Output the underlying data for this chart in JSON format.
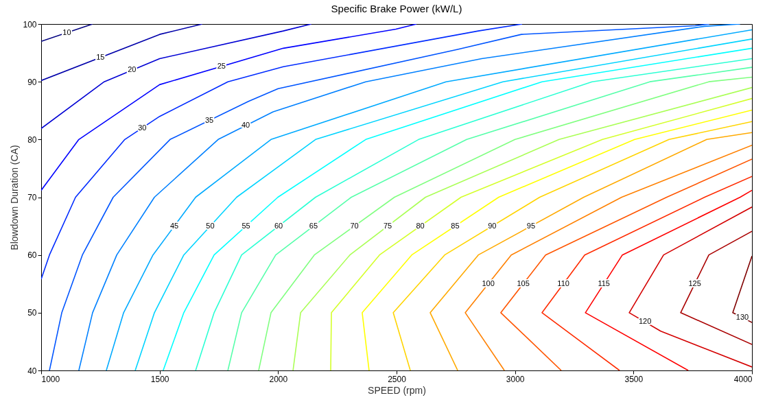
{
  "chart_data": {
    "type": "line",
    "title": "Specific Brake Power (kW/L)",
    "xlabel": "SPEED (rpm)",
    "ylabel": "Blowdown Duration (CA)",
    "xlim": [
      1000,
      4000
    ],
    "ylim": [
      40,
      100
    ],
    "xticks": [
      1000,
      1500,
      2000,
      2500,
      3000,
      3500,
      4000
    ],
    "yticks": [
      40,
      50,
      60,
      70,
      80,
      90,
      100
    ],
    "grid": false,
    "series": [
      {
        "name": "10",
        "color": "#000080",
        "x": [
          1000,
          1217
        ],
        "values": [
          97,
          100
        ]
      },
      {
        "name": "15",
        "color": "#0000aa",
        "x": [
          1000,
          1500,
          1680
        ],
        "values": [
          90.2,
          98.2,
          100
        ]
      },
      {
        "name": "20",
        "color": "#0000d4",
        "x": [
          1000,
          1266,
          1500,
          2022,
          2140
        ],
        "values": [
          81.9,
          90,
          94,
          98.8,
          100
        ]
      },
      {
        "name": "25",
        "color": "#0000ff",
        "x": [
          1000,
          1159,
          1500,
          2022,
          2497,
          2584
        ],
        "values": [
          71.2,
          80,
          89.5,
          95.8,
          99.1,
          100
        ]
      },
      {
        "name": "30",
        "color": "#002bff",
        "x": [
          1000,
          1035,
          1145,
          1353,
          1500,
          1788,
          2022,
          2845,
          3030
        ],
        "values": [
          55.8,
          60,
          70,
          80,
          84,
          90,
          92.6,
          98.8,
          100
        ]
      },
      {
        "name": "35",
        "color": "#0055ff",
        "x": [
          1035,
          1087,
          1174,
          1304,
          1544,
          1875,
          2000,
          2758,
          3027,
          3760,
          3820
        ],
        "values": [
          40,
          50,
          60,
          70,
          80,
          86.6,
          88.8,
          95.6,
          98.2,
          99.7,
          100
        ]
      },
      {
        "name": "40",
        "color": "#0080ff",
        "x": [
          1159,
          1217,
          1319,
          1478,
          1747,
          1979,
          2370,
          2859,
          3800,
          3950
        ],
        "values": [
          40,
          50,
          60,
          70,
          80,
          84.8,
          90,
          94,
          99.6,
          100
        ]
      },
      {
        "name": "45",
        "color": "#00aaff",
        "x": [
          1275,
          1348,
          1472,
          1652,
          1970,
          2709,
          4000
        ],
        "values": [
          40,
          50,
          60,
          70,
          80,
          90,
          99
        ]
      },
      {
        "name": "50",
        "color": "#00d4ff",
        "x": [
          1397,
          1478,
          1602,
          1825,
          2158,
          2949,
          4000
        ],
        "values": [
          40,
          50,
          60,
          70,
          80,
          90,
          97.4
        ]
      },
      {
        "name": "55",
        "color": "#00ffff",
        "x": [
          1515,
          1602,
          1730,
          1999,
          2370,
          3114,
          4000
        ],
        "values": [
          40,
          50,
          60,
          70,
          80,
          90,
          95.8
        ]
      },
      {
        "name": "60",
        "color": "#2bffd4",
        "x": [
          1652,
          1730,
          1846,
          2158,
          2593,
          3325,
          4000
        ],
        "values": [
          40,
          50,
          60,
          70,
          80,
          90,
          94
        ]
      },
      {
        "name": "65",
        "color": "#55ffaa",
        "x": [
          1788,
          1846,
          1990,
          2309,
          2796,
          3569,
          4000
        ],
        "values": [
          40,
          50,
          60,
          70,
          80,
          90,
          92.5
        ]
      },
      {
        "name": "70",
        "color": "#80ff80",
        "x": [
          1918,
          1970,
          2153,
          2491,
          3000,
          3818,
          4000
        ],
        "values": [
          40,
          50,
          60,
          70,
          80,
          90,
          90.8
        ]
      },
      {
        "name": "75",
        "color": "#aaff55",
        "x": [
          2063,
          2095,
          2303,
          2622,
          3186,
          4000
        ],
        "values": [
          40,
          50,
          60,
          70,
          80,
          89
        ]
      },
      {
        "name": "80",
        "color": "#d4ff2b",
        "x": [
          2222,
          2225,
          2428,
          2772,
          3369,
          4000
        ],
        "values": [
          40,
          50,
          60,
          70,
          80,
          87.1
        ]
      },
      {
        "name": "85",
        "color": "#ffff00",
        "x": [
          2384,
          2355,
          2564,
          2931,
          3505,
          4000
        ],
        "values": [
          40,
          50,
          60,
          70,
          80,
          85.1
        ]
      },
      {
        "name": "90",
        "color": "#ffd400",
        "x": [
          2558,
          2486,
          2703,
          3104,
          3650,
          4000
        ],
        "values": [
          40,
          50,
          60,
          70,
          80,
          83.1
        ]
      },
      {
        "name": "95",
        "color": "#ffaa00",
        "x": [
          2758,
          2642,
          2845,
          3290,
          3809,
          4000
        ],
        "values": [
          40,
          50,
          60,
          70,
          80,
          81.2
        ]
      },
      {
        "name": "100",
        "color": "#ff8000",
        "x": [
          2955,
          2790,
          2984,
          3450,
          4000
        ],
        "values": [
          40,
          50,
          60,
          70,
          79
        ]
      },
      {
        "name": "105",
        "color": "#ff5500",
        "x": [
          3195,
          2940,
          3129,
          3640,
          4000
        ],
        "values": [
          40,
          50,
          60,
          70,
          76.6
        ]
      },
      {
        "name": "110",
        "color": "#ff2b00",
        "x": [
          3441,
          3114,
          3294,
          3800,
          4000
        ],
        "values": [
          40,
          50,
          60,
          70,
          73.6
        ]
      },
      {
        "name": "115",
        "color": "#ff0000",
        "x": [
          3731,
          3297,
          3453,
          3950,
          4000
        ],
        "values": [
          40,
          50,
          60,
          70,
          71.2
        ]
      },
      {
        "name": "120",
        "color": "#d40000",
        "x": [
          4000,
          3615,
          3482,
          3627,
          4000
        ],
        "values": [
          40.6,
          46.8,
          50,
          60,
          68.3
        ]
      },
      {
        "name": "125",
        "color": "#aa0000",
        "x": [
          4000,
          3699,
          3818,
          4000
        ],
        "values": [
          44.5,
          50,
          60,
          64.1
        ]
      },
      {
        "name": "130",
        "color": "#800000",
        "x": [
          4000,
          3919,
          4000
        ],
        "values": [
          48.3,
          50,
          59.8
        ]
      }
    ]
  }
}
